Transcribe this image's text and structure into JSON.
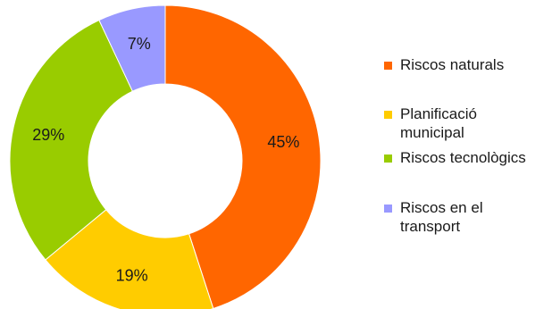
{
  "chart_data": {
    "type": "pie",
    "variant": "donut",
    "title": "",
    "categories": [
      "Riscos naturals",
      "Planificació municipal",
      "Riscos tecnològics",
      "Riscos en el transport"
    ],
    "values": [
      45,
      19,
      29,
      7
    ],
    "value_labels": [
      "45%",
      "19%",
      "29%",
      "7%"
    ],
    "colors": [
      "#FF6600",
      "#FFCC00",
      "#99CC00",
      "#9999FF"
    ],
    "start_angle": "top",
    "direction": "clockwise",
    "legend_position": "right"
  },
  "legend": {
    "items": [
      {
        "label": "Riscos naturals",
        "color": "#FF6600"
      },
      {
        "label": "Planificació municipal",
        "color": "#FFCC00"
      },
      {
        "label": "Riscos tecnològics",
        "color": "#99CC00"
      },
      {
        "label": "Riscos en el transport",
        "color": "#9999FF"
      }
    ]
  }
}
